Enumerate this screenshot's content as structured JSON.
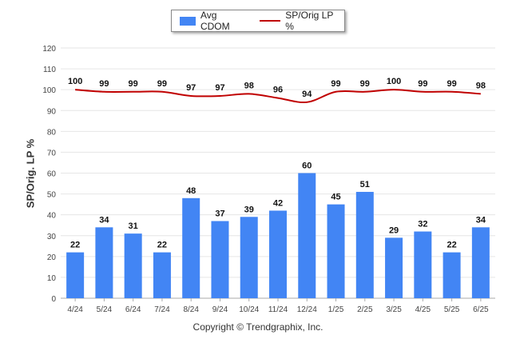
{
  "legend": {
    "bar_label": "Avg CDOM",
    "line_label": "SP/Orig LP %"
  },
  "ylabel": "SP/Orig. LP %",
  "footer": "Copyright © Trendgraphix, Inc.",
  "colors": {
    "bar": "#4285f4",
    "line": "#c00000",
    "grid": "#e6e6e6",
    "axis": "#555555"
  },
  "chart_data": {
    "type": "bar",
    "categories": [
      "4/24",
      "5/24",
      "6/24",
      "7/24",
      "8/24",
      "9/24",
      "10/24",
      "11/24",
      "12/24",
      "1/25",
      "2/25",
      "3/25",
      "4/25",
      "5/25",
      "6/25"
    ],
    "series": [
      {
        "name": "Avg CDOM",
        "type": "bar",
        "values": [
          22,
          34,
          31,
          22,
          48,
          37,
          39,
          42,
          60,
          45,
          51,
          29,
          32,
          22,
          34
        ]
      },
      {
        "name": "SP/Orig LP %",
        "type": "line",
        "values": [
          100,
          99,
          99,
          99,
          97,
          97,
          98,
          96,
          94,
          99,
          99,
          100,
          99,
          99,
          98
        ]
      }
    ],
    "ylabel": "SP/Orig. LP %",
    "ylim": [
      0,
      120
    ],
    "yticks": [
      0,
      10,
      20,
      30,
      40,
      50,
      60,
      70,
      80,
      90,
      100,
      110,
      120
    ],
    "grid": true,
    "legend_position": "top"
  }
}
